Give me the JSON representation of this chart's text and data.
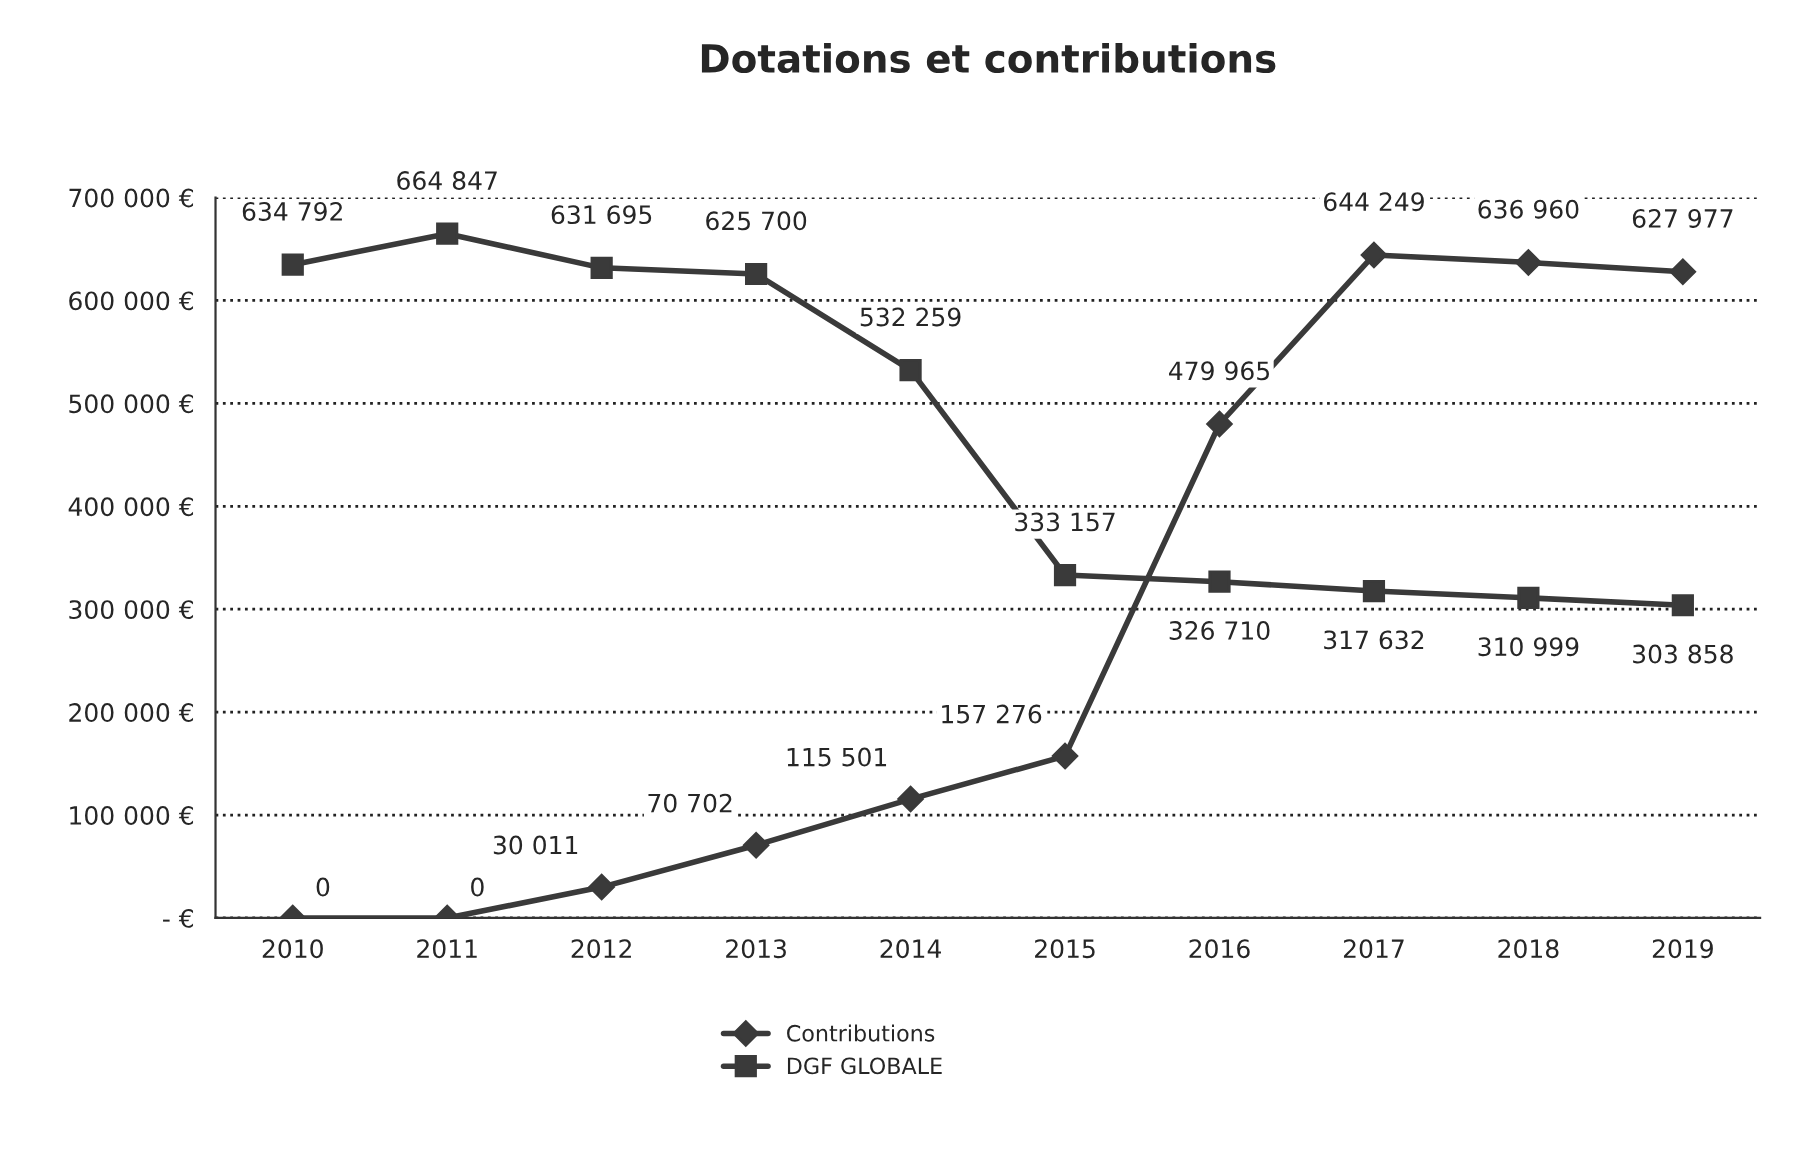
{
  "chart_data": {
    "type": "line",
    "title": "Dotations et contributions",
    "categories": [
      "2010",
      "2011",
      "2012",
      "2013",
      "2014",
      "2015",
      "2016",
      "2017",
      "2018",
      "2019"
    ],
    "series": [
      {
        "name": "Contributions",
        "color": "#3a3a3a",
        "marker": "diamond",
        "values": [
          0,
          0,
          30011,
          70702,
          115501,
          157276,
          479965,
          644249,
          636960,
          627977
        ],
        "value_labels": [
          "0",
          "0",
          "30 011",
          "70 702",
          "115 501",
          "157 276",
          "479 965",
          "644 249",
          "636 960",
          "627 977"
        ]
      },
      {
        "name": "DGF GLOBALE",
        "color": "#3a3a3a",
        "marker": "square",
        "values": [
          634792,
          664847,
          631695,
          625700,
          532259,
          333157,
          326710,
          317632,
          310999,
          303858
        ],
        "value_labels": [
          "634 792",
          "664 847",
          "631 695",
          "625 700",
          "532 259",
          "333 157",
          "326 710",
          "317 632",
          "310 999",
          "303 858"
        ]
      }
    ],
    "ylim": [
      0,
      700000
    ],
    "yticks": [
      {
        "value": 0,
        "label": "- €"
      },
      {
        "value": 100000,
        "label": "100 000 €"
      },
      {
        "value": 200000,
        "label": "200 000 €"
      },
      {
        "value": 300000,
        "label": "300 000 €"
      },
      {
        "value": 400000,
        "label": "400 000 €"
      },
      {
        "value": 500000,
        "label": "500 000 €"
      },
      {
        "value": 600000,
        "label": "600 000 €"
      },
      {
        "value": 700000,
        "label": "700 000 €"
      }
    ],
    "grid": "y",
    "legend": "bottom",
    "line_style": "solid"
  }
}
